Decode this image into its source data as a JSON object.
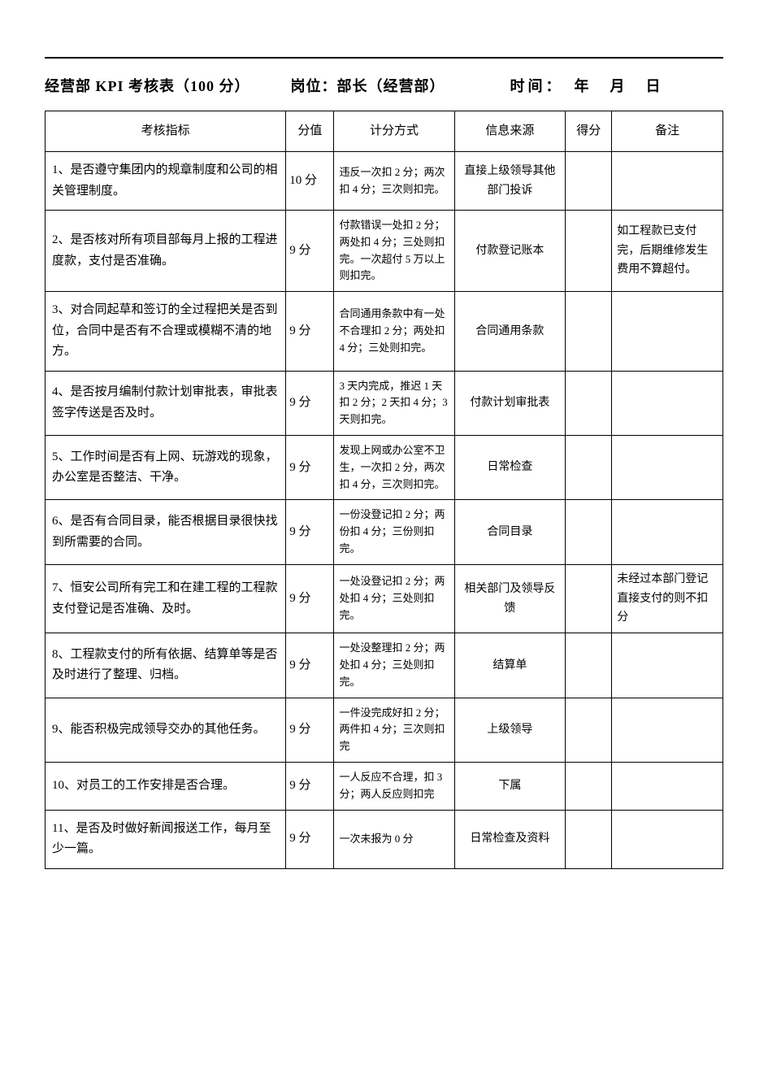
{
  "header": {
    "title": "经营部 KPI 考核表（100 分）",
    "position": "岗位：部长（经营部）",
    "datetime": "时间：　年　月　日"
  },
  "table": {
    "columns": {
      "indicator": "考核指标",
      "score": "分值",
      "method": "计分方式",
      "source": "信息来源",
      "got": "得分",
      "note": "备注"
    },
    "rows": [
      {
        "indicator": "1、是否遵守集团内的规章制度和公司的相关管理制度。",
        "score": "10 分",
        "method": "违反一次扣 2 分；两次扣 4 分；三次则扣完。",
        "source": "直接上级领导其他部门投诉",
        "got": "",
        "note": ""
      },
      {
        "indicator": "2、是否核对所有项目部每月上报的工程进度款，支付是否准确。",
        "score": "9 分",
        "method": "付款错误一处扣 2 分；两处扣 4 分；三处则扣完。一次超付 5 万以上则扣完。",
        "source": "付款登记账本",
        "got": "",
        "note": "如工程款已支付完，后期维修发生费用不算超付。"
      },
      {
        "indicator": "3、对合同起草和签订的全过程把关是否到位，合同中是否有不合理或模糊不清的地方。",
        "score": "9 分",
        "method": "合同通用条款中有一处不合理扣 2 分；两处扣 4 分；三处则扣完。",
        "source": "合同通用条款",
        "got": "",
        "note": ""
      },
      {
        "indicator": "4、是否按月编制付款计划审批表，审批表签字传送是否及时。",
        "score": "9 分",
        "method": "3 天内完成，推迟 1 天扣 2 分；2 天扣 4 分；3 天则扣完。",
        "source": "付款计划审批表",
        "got": "",
        "note": ""
      },
      {
        "indicator": "5、工作时间是否有上网、玩游戏的现象，办公室是否整洁、干净。",
        "score": "9 分",
        "method": "发现上网或办公室不卫生，一次扣 2 分，两次扣 4 分，三次则扣完。",
        "source": "日常检查",
        "got": "",
        "note": ""
      },
      {
        "indicator": "6、是否有合同目录，能否根据目录很快找到所需要的合同。",
        "score": "9 分",
        "method": "一份没登记扣 2 分；两份扣 4 分；三份则扣完。",
        "source": "合同目录",
        "got": "",
        "note": ""
      },
      {
        "indicator": "7、恒安公司所有完工和在建工程的工程款支付登记是否准确、及时。",
        "score": "9 分",
        "method": "一处没登记扣 2 分；两处扣 4 分；三处则扣完。",
        "source": "相关部门及领导反馈",
        "got": "",
        "note": "未经过本部门登记直接支付的则不扣分"
      },
      {
        "indicator": "8、工程款支付的所有依据、结算单等是否及时进行了整理、归档。",
        "score": "9 分",
        "method": "一处没整理扣 2 分；两处扣 4 分；三处则扣完。",
        "source": "结算单",
        "got": "",
        "note": ""
      },
      {
        "indicator": "9、能否积极完成领导交办的其他任务。",
        "score": "9 分",
        "method": "一件没完成好扣 2 分；两件扣 4 分；三次则扣完",
        "source": "上级领导",
        "got": "",
        "note": ""
      },
      {
        "indicator": "10、对员工的工作安排是否合理。",
        "score": "9 分",
        "method": "一人反应不合理，扣 3 分；两人反应则扣完",
        "source": "下属",
        "got": "",
        "note": ""
      },
      {
        "indicator": "11、是否及时做好新闻报送工作，每月至少一篇。",
        "score": "9 分",
        "method": "一次未报为 0 分",
        "source": "日常检查及资料",
        "got": "",
        "note": ""
      }
    ]
  }
}
